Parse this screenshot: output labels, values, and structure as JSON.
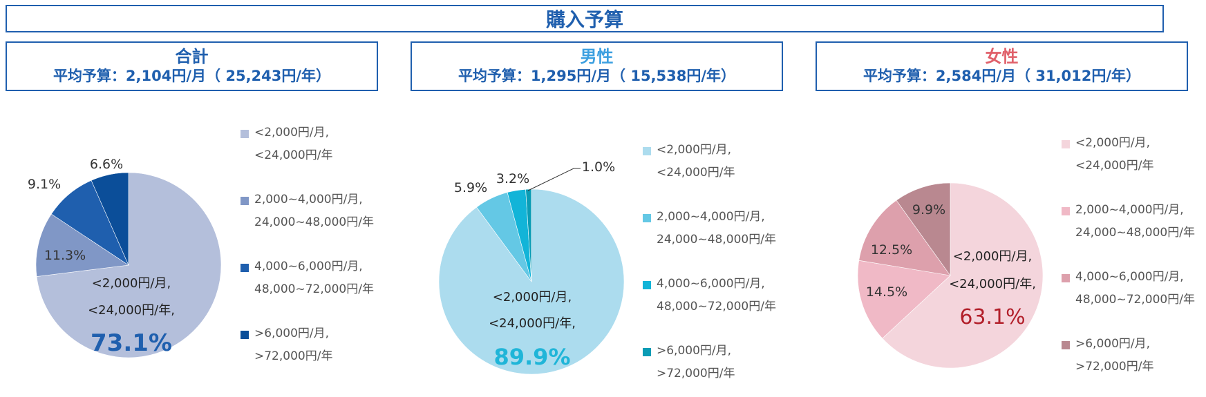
{
  "title": "購入予算",
  "panels": [
    {
      "title": "合計",
      "title_color": "#1f5fae",
      "average": "平均予算：2,104円/月（ 25,243円/年）",
      "callout_pct_color": "#1f5fae",
      "legend": [
        {
          "l1": "<2,000円/月,",
          "l2": "<24,000円/年",
          "color": "#b4bfdb"
        },
        {
          "l1": "2,000~4,000円/月,",
          "l2": "24,000~48,000円/年",
          "color": "#8097c6"
        },
        {
          "l1": "4,000~6,000円/月,",
          "l2": "48,000~72,000円/年",
          "color": "#1f5fae"
        },
        {
          "l1": ">6,000円/月,",
          "l2": ">72,000円/年",
          "color": "#0b4e99"
        }
      ],
      "callout": {
        "l1": "<2,000円/月,",
        "l2": "<24,000円/年,",
        "pct": "73.1%"
      },
      "slice_labels": [
        "11.3%",
        "9.1%",
        "6.6%"
      ]
    },
    {
      "title": "男性",
      "title_color": "#3b9fe0",
      "average": "平均予算：1,295円/月（ 15,538円/年）",
      "callout_pct_color": "#1fb5d8",
      "legend": [
        {
          "l1": "<2,000円/月,",
          "l2": "<24,000円/年",
          "color": "#acdcee"
        },
        {
          "l1": "2,000~4,000円/月,",
          "l2": "24,000~48,000円/年",
          "color": "#64c8e5"
        },
        {
          "l1": "4,000~6,000円/月,",
          "l2": "48,000~72,000円/年",
          "color": "#12b4d8"
        },
        {
          "l1": ">6,000円/月,",
          "l2": ">72,000円/年",
          "color": "#0a9cb5"
        }
      ],
      "callout": {
        "l1": "<2,000円/月,",
        "l2": "<24,000円/年,",
        "pct": "89.9%"
      },
      "slice_labels": [
        "5.9%",
        "3.2%",
        "1.0%"
      ]
    },
    {
      "title": "女性",
      "title_color": "#e0606a",
      "average": "平均予算：2,584円/月（ 31,012円/年）",
      "callout_pct_color": "#b21f2a",
      "legend": [
        {
          "l1": "<2,000円/月,",
          "l2": "<24,000円/年",
          "color": "#f4d5dc"
        },
        {
          "l1": "2,000~4,000円/月,",
          "l2": "24,000~48,000円/年",
          "color": "#f0b9c6"
        },
        {
          "l1": "4,000~6,000円/月,",
          "l2": "48,000~72,000円/年",
          "color": "#dda0ac"
        },
        {
          "l1": ">6,000円/月,",
          "l2": ">72,000円/年",
          "color": "#b98890"
        }
      ],
      "callout": {
        "l1": "<2,000円/月,",
        "l2": "<24,000円/年,",
        "pct": "63.1%"
      },
      "slice_labels": [
        "14.5%",
        "12.5%",
        "9.9%"
      ]
    }
  ],
  "chart_data": [
    {
      "type": "pie",
      "title": "合計",
      "categories": [
        "<2,000円/月, <24,000円/年",
        "2,000~4,000円/月, 24,000~48,000円/年",
        "4,000~6,000円/月, 48,000~72,000円/年",
        ">6,000円/月, >72,000円/年"
      ],
      "values": [
        73.1,
        11.3,
        9.1,
        6.6
      ],
      "colors": [
        "#b4bfdb",
        "#8097c6",
        "#1f5fae",
        "#0b4e99"
      ],
      "legend_position": "right"
    },
    {
      "type": "pie",
      "title": "男性",
      "categories": [
        "<2,000円/月, <24,000円/年",
        "2,000~4,000円/月, 24,000~48,000円/年",
        "4,000~6,000円/月, 48,000~72,000円/年",
        ">6,000円/月, >72,000円/年"
      ],
      "values": [
        89.9,
        5.9,
        3.2,
        1.0
      ],
      "colors": [
        "#acdcee",
        "#64c8e5",
        "#12b4d8",
        "#0a9cb5"
      ],
      "legend_position": "right"
    },
    {
      "type": "pie",
      "title": "女性",
      "categories": [
        "<2,000円/月, <24,000円/年",
        "2,000~4,000円/月, 24,000~48,000円/年",
        "4,000~6,000円/月, 48,000~72,000円/年",
        ">6,000円/月, >72,000円/年"
      ],
      "values": [
        63.1,
        14.5,
        12.5,
        9.9
      ],
      "colors": [
        "#f4d5dc",
        "#f0b9c6",
        "#dda0ac",
        "#b98890"
      ],
      "legend_position": "right"
    }
  ]
}
